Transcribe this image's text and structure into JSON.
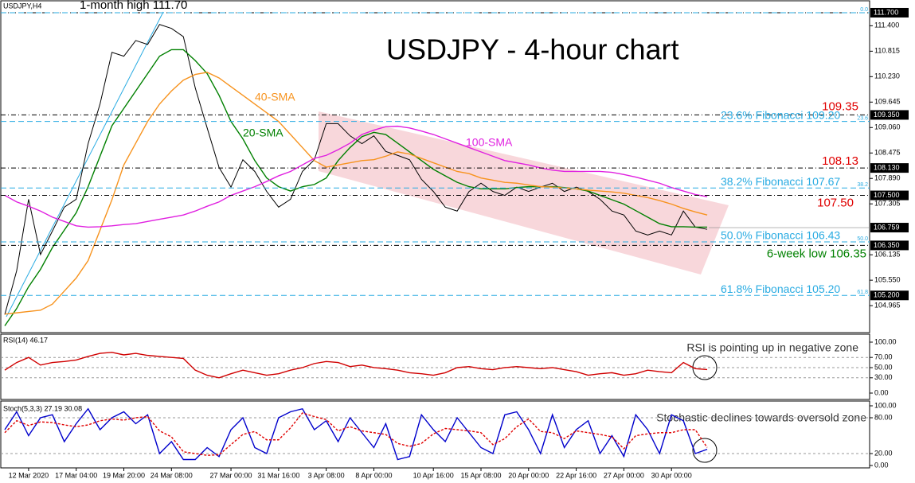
{
  "chart_data": [
    {
      "type": "line",
      "title": "USDJPY - 4-hour chart",
      "subtitle": "USDJPY,H4",
      "x": [
        null,
        null,
        "12 Mar 2020",
        null,
        null,
        null,
        "17 Mar 04:00",
        null,
        null,
        null,
        "19 Mar 20:00",
        null,
        null,
        null,
        "24 Mar 08:00",
        null,
        null,
        null,
        null,
        "27 Mar 00:00",
        null,
        null,
        null,
        "31 Mar 16:00",
        null,
        null,
        null,
        "3 Apr 08:00",
        null,
        null,
        null,
        "8 Apr 00:00",
        null,
        null,
        null,
        null,
        "10 Apr 16:00",
        null,
        null,
        null,
        "15 Apr 08:00",
        null,
        null,
        null,
        "20 Apr 00:00",
        null,
        null,
        null,
        "22 Apr 16:00",
        null,
        null,
        null,
        "27 Apr 00:00",
        null,
        null,
        null,
        "30 Apr 00:00",
        null,
        null,
        null
      ],
      "series": [
        {
          "color": "#000000",
          "values": [
            104.76,
            105.77,
            107.41,
            106.14,
            106.68,
            107.23,
            107.41,
            108.69,
            109.6,
            110.79,
            110.7,
            111.06,
            110.97,
            111.43,
            111.34,
            111.15,
            109.97,
            109.05,
            108.14,
            107.69,
            108.32,
            108.05,
            107.59,
            107.23,
            107.41,
            108.05,
            108.32,
            109.15,
            109.15,
            108.87,
            108.69,
            108.87,
            108.51,
            108.42,
            108.32,
            107.87,
            107.59,
            107.23,
            107.14,
            107.59,
            107.78,
            107.59,
            107.5,
            107.69,
            107.59,
            107.69,
            107.78,
            107.59,
            107.69,
            107.59,
            107.41,
            107.14,
            107.05,
            106.68,
            106.59,
            106.68,
            106.59,
            107.14,
            106.77,
            106.72
          ]
        },
        {
          "name": "20-SMA",
          "color": "#008000",
          "values": [
            104.5,
            104.9,
            105.4,
            105.8,
            106.3,
            106.7,
            107.1,
            107.7,
            108.4,
            109.1,
            109.5,
            109.9,
            110.3,
            110.7,
            110.85,
            110.85,
            110.6,
            110.3,
            109.8,
            109.2,
            108.8,
            108.3,
            107.9,
            107.7,
            107.6,
            107.7,
            107.75,
            107.9,
            108.3,
            108.6,
            108.85,
            108.95,
            108.9,
            108.7,
            108.5,
            108.3,
            108.1,
            107.95,
            107.8,
            107.7,
            107.65,
            107.65,
            107.65,
            107.68,
            107.7,
            107.7,
            107.7,
            107.68,
            107.65,
            107.6,
            107.5,
            107.4,
            107.3,
            107.15,
            107.0,
            106.85,
            106.78,
            106.78,
            106.77,
            106.77
          ]
        },
        {
          "name": "40-SMA",
          "color": "#f7931e",
          "values": [
            104.77,
            104.8,
            104.83,
            104.86,
            105.0,
            105.3,
            105.6,
            106.0,
            106.7,
            107.4,
            108.2,
            108.7,
            109.2,
            109.6,
            109.9,
            110.15,
            110.28,
            110.33,
            110.2,
            110.0,
            109.8,
            109.6,
            109.4,
            109.2,
            108.9,
            108.6,
            108.3,
            108.15,
            108.2,
            108.25,
            108.3,
            108.32,
            108.4,
            108.5,
            108.45,
            108.35,
            108.25,
            108.15,
            108.05,
            108.0,
            107.9,
            107.85,
            107.8,
            107.78,
            107.74,
            107.7,
            107.69,
            107.67,
            107.65,
            107.62,
            107.6,
            107.58,
            107.55,
            107.5,
            107.45,
            107.38,
            107.3,
            107.2,
            107.12,
            107.05
          ]
        },
        {
          "name": "100-SMA",
          "color": "#e020e0",
          "values": [
            107.5,
            107.35,
            107.25,
            107.14,
            107.0,
            106.9,
            106.8,
            106.77,
            106.78,
            106.8,
            106.83,
            106.85,
            106.9,
            106.95,
            107.0,
            107.05,
            107.14,
            107.25,
            107.35,
            107.5,
            107.6,
            107.7,
            107.82,
            107.95,
            108.05,
            108.2,
            108.35,
            108.42,
            108.55,
            108.7,
            108.9,
            109.0,
            109.08,
            109.09,
            109.05,
            108.98,
            108.9,
            108.8,
            108.7,
            108.6,
            108.5,
            108.4,
            108.3,
            108.25,
            108.2,
            108.13,
            108.08,
            108.05,
            108.05,
            108.05,
            108.05,
            108.03,
            107.98,
            107.92,
            107.85,
            107.78,
            107.68,
            107.6,
            107.52,
            107.47
          ]
        }
      ],
      "ylim": [
        104.345,
        111.974
      ],
      "yticks": [
        {
          "value": 111.4,
          "label": "111.400"
        },
        {
          "value": 110.815,
          "label": "110.815"
        },
        {
          "value": 110.23,
          "label": "110.230"
        },
        {
          "value": 109.645,
          "label": "109.645"
        },
        {
          "value": 109.06,
          "label": "109.060"
        },
        {
          "value": 108.475,
          "label": "108.475"
        },
        {
          "value": 107.89,
          "label": "107.890"
        },
        {
          "value": 107.305,
          "label": "107.305"
        },
        {
          "value": 106.135,
          "label": "106.135"
        },
        {
          "value": 105.55,
          "label": "105.550"
        },
        {
          "value": 104.965,
          "label": "104.965"
        }
      ],
      "levels": [
        {
          "value": 111.7,
          "label": "111.700",
          "note": "1-month high 111.70",
          "note_color": "#000000"
        },
        {
          "value": 109.35,
          "label": "109.350",
          "note": "109.35",
          "note_color": "#e00000"
        },
        {
          "value": 108.13,
          "label": "108.130",
          "note": "108.13",
          "note_color": "#e00000"
        },
        {
          "value": 107.5,
          "label": "107.500",
          "note": "107.50",
          "note_color": "#e00000"
        },
        {
          "value": 106.35,
          "label": "106.350",
          "note": "6-week low 106.35",
          "note_color": "#008000"
        }
      ],
      "current_price": {
        "value": 106.759,
        "label": "106.759"
      },
      "fibonacci": [
        {
          "value": 111.7,
          "tag": "0.0"
        },
        {
          "value": 109.2,
          "tag": "23.6",
          "label": "23.6% Fibonacci 109.20"
        },
        {
          "value": 107.67,
          "tag": "38.2",
          "label": "38.2% Fibonacci 107.67"
        },
        {
          "value": 106.43,
          "tag": "50.0",
          "label": "50.0% Fibonacci 106.43"
        },
        {
          "value": 105.2,
          "tag": "61.8",
          "label": "61.8% Fibonacci 105.20",
          "price_label": "105.200"
        }
      ],
      "fib_color": "#29abe2"
    },
    {
      "type": "line",
      "title": "RSI(14) 46.17",
      "annotation": "RSI is pointing up in negative zone",
      "series": [
        {
          "color": "#d00000",
          "values": [
            45,
            60,
            70,
            55,
            60,
            62,
            65,
            72,
            78,
            80,
            75,
            78,
            74,
            72,
            70,
            68,
            45,
            35,
            30,
            38,
            45,
            40,
            35,
            38,
            45,
            50,
            58,
            62,
            60,
            52,
            55,
            50,
            48,
            45,
            40,
            38,
            35,
            40,
            50,
            52,
            48,
            46,
            50,
            52,
            50,
            48,
            50,
            46,
            42,
            35,
            38,
            40,
            35,
            38,
            45,
            42,
            40,
            60,
            48,
            46.17
          ]
        }
      ],
      "ylim": [
        -12.5,
        115.6
      ],
      "yticks": [
        {
          "value": 100,
          "label": "100.00"
        },
        {
          "value": 70,
          "label": "70.00"
        },
        {
          "value": 50,
          "label": "50.00"
        },
        {
          "value": 30,
          "label": "30.00"
        },
        {
          "value": 0,
          "label": "0.00"
        }
      ],
      "grid": true
    },
    {
      "type": "line",
      "title": "Stoch(5,3,3) 27.19 30.08",
      "annotation": "Stochastic declines towards oversold zone",
      "series": [
        {
          "color": "#0000cc",
          "values": [
            60,
            90,
            50,
            80,
            85,
            40,
            70,
            95,
            60,
            80,
            90,
            70,
            85,
            20,
            40,
            10,
            10,
            30,
            15,
            60,
            80,
            30,
            20,
            80,
            90,
            95,
            60,
            75,
            40,
            80,
            55,
            30,
            70,
            10,
            15,
            85,
            60,
            40,
            80,
            55,
            30,
            20,
            85,
            90,
            60,
            20,
            85,
            30,
            60,
            75,
            20,
            50,
            15,
            85,
            60,
            20,
            85,
            75,
            20,
            27.19
          ]
        },
        {
          "color": "#e00000",
          "dash": true,
          "values": [
            55,
            75,
            67,
            73,
            72,
            68,
            65,
            68,
            75,
            78,
            76,
            80,
            82,
            58,
            48,
            23,
            20,
            17,
            18,
            35,
            52,
            57,
            43,
            43,
            63,
            88,
            82,
            77,
            58,
            65,
            58,
            55,
            52,
            37,
            32,
            37,
            53,
            62,
            60,
            58,
            55,
            35,
            45,
            65,
            78,
            57,
            55,
            45,
            58,
            55,
            52,
            48,
            28,
            50,
            53,
            55,
            55,
            60,
            60,
            30.08
          ]
        }
      ],
      "ylim": [
        -4,
        108
      ],
      "yticks": [
        {
          "value": 100,
          "label": "100.00"
        },
        {
          "value": 80,
          "label": "80.00"
        },
        {
          "value": 20,
          "label": "20.00"
        },
        {
          "value": 0,
          "label": "0.00"
        }
      ],
      "grid": true
    }
  ]
}
